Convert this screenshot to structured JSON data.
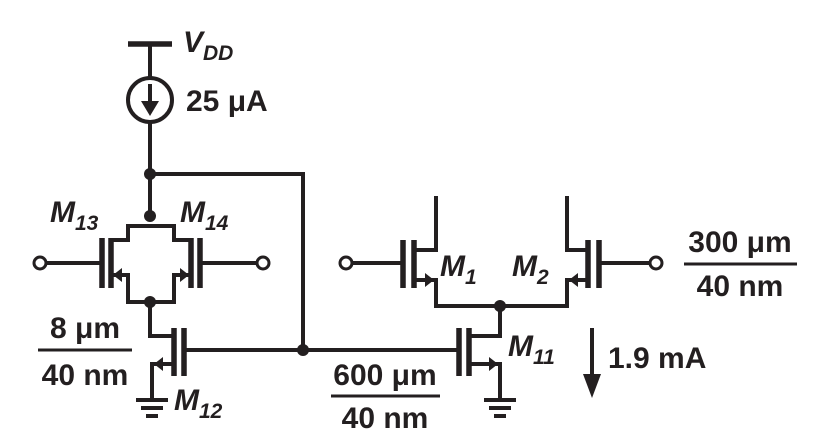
{
  "supply": {
    "base": "V",
    "sub": "DD"
  },
  "current_source": {
    "value": "25 μA"
  },
  "devices": {
    "m13": {
      "base": "M",
      "sub": "13"
    },
    "m14": {
      "base": "M",
      "sub": "14"
    },
    "m12": {
      "base": "M",
      "sub": "12"
    },
    "m1": {
      "base": "M",
      "sub": "1"
    },
    "m2": {
      "base": "M",
      "sub": "2"
    },
    "m11": {
      "base": "M",
      "sub": "11"
    }
  },
  "sizes": {
    "m12": {
      "num": "8 μm",
      "den": "40 nm"
    },
    "m11": {
      "num": "600 μm",
      "den": "40 nm"
    },
    "m1_m2": {
      "num": "300 μm",
      "den": "40 nm"
    }
  },
  "tail_current": {
    "value": "1.9 mA"
  }
}
